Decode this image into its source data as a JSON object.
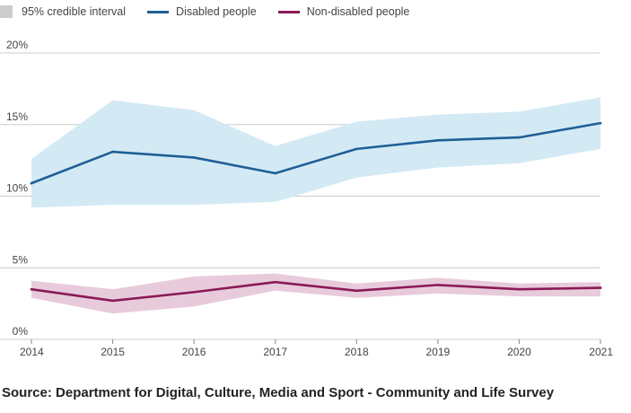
{
  "legend": {
    "interval_label": "95% credible interval",
    "series1_label": "Disabled people",
    "series2_label": "Non-disabled people"
  },
  "colors": {
    "disabled_line": "#1f5f96",
    "disabled_band": "#d3eaf5",
    "nondisabled_line": "#8a1a57",
    "nondisabled_band": "#e8cbdb",
    "interval_swatch": "#cccccc",
    "grid": "#cccccc"
  },
  "source": "Source: Department for Digital, Culture, Media and Sport - Community and Life Survey",
  "chart_data": {
    "type": "line",
    "title": "",
    "xlabel": "",
    "ylabel": "",
    "ylim": [
      0,
      20
    ],
    "y_ticks": [
      0,
      5,
      10,
      15,
      20
    ],
    "y_tick_labels": [
      "0%",
      "5%",
      "10%",
      "15%",
      "20%"
    ],
    "x": [
      2014,
      2015,
      2016,
      2017,
      2018,
      2019,
      2020,
      2021
    ],
    "x_tick_labels": [
      "2014",
      "2015",
      "2016",
      "2017",
      "2018",
      "2019",
      "2020",
      "2021"
    ],
    "legend_position": "top-left",
    "series": [
      {
        "name": "Disabled people",
        "values": [
          10.9,
          13.1,
          12.7,
          11.6,
          13.3,
          13.9,
          14.1,
          15.1
        ],
        "lower": [
          9.2,
          9.4,
          9.4,
          9.6,
          11.3,
          12.0,
          12.3,
          13.3
        ],
        "upper": [
          12.6,
          16.7,
          16.0,
          13.5,
          15.2,
          15.7,
          15.9,
          16.9
        ]
      },
      {
        "name": "Non-disabled people",
        "values": [
          3.5,
          2.7,
          3.3,
          4.0,
          3.4,
          3.8,
          3.5,
          3.6
        ],
        "lower": [
          2.9,
          1.8,
          2.3,
          3.4,
          2.9,
          3.2,
          3.0,
          3.0
        ],
        "upper": [
          4.1,
          3.5,
          4.4,
          4.6,
          3.9,
          4.3,
          3.9,
          4.0
        ]
      }
    ]
  }
}
